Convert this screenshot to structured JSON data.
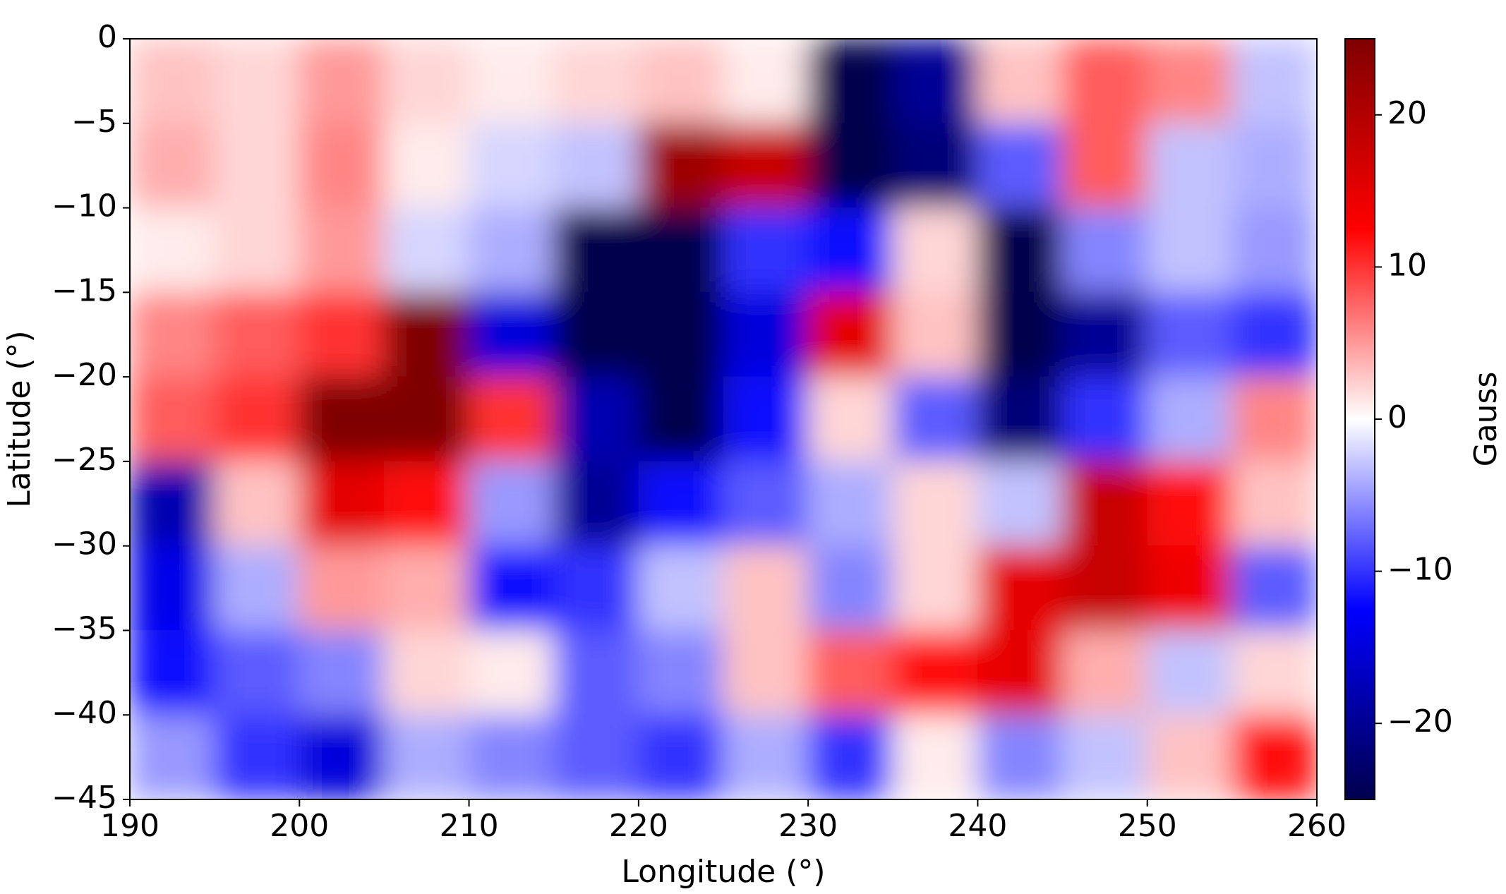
{
  "chart_data": {
    "type": "heatmap",
    "xlabel": "Longitude (°)",
    "ylabel": "Latitude (°)",
    "x": [
      192.5,
      197.5,
      202.5,
      207.5,
      212.5,
      217.5,
      222.5,
      227.5,
      232.5,
      237.5,
      242.5,
      247.5,
      252.5,
      257.5
    ],
    "y": [
      -2.5,
      -7.5,
      -12.5,
      -17.5,
      -22.5,
      -27.5,
      -32.5,
      -37.5,
      -42.5
    ],
    "values": [
      [
        3,
        2,
        5,
        2,
        1,
        2,
        3,
        1,
        -25,
        -20,
        3,
        8,
        6,
        -3
      ],
      [
        4,
        2,
        6,
        1,
        -2,
        -3,
        22,
        18,
        -25,
        -22,
        -8,
        8,
        -3,
        -4
      ],
      [
        1,
        2,
        5,
        -2,
        -4,
        -25,
        -25,
        -10,
        -12,
        2,
        -25,
        -6,
        -3,
        -5
      ],
      [
        6,
        8,
        10,
        25,
        -15,
        -25,
        -25,
        -15,
        15,
        3,
        -25,
        -20,
        -8,
        -10
      ],
      [
        8,
        10,
        25,
        25,
        10,
        -18,
        -25,
        -12,
        2,
        -8,
        -22,
        -10,
        -4,
        6
      ],
      [
        -18,
        3,
        15,
        12,
        -5,
        -20,
        -12,
        -8,
        -4,
        2,
        -3,
        18,
        12,
        3
      ],
      [
        -14,
        -4,
        5,
        4,
        -12,
        -10,
        -3,
        3,
        -6,
        2,
        15,
        18,
        14,
        -8
      ],
      [
        -12,
        -8,
        -6,
        2,
        1,
        -8,
        -6,
        3,
        8,
        12,
        15,
        4,
        -3,
        2
      ],
      [
        -5,
        -10,
        -15,
        -4,
        -6,
        -8,
        -10,
        -4,
        -10,
        1,
        -6,
        -3,
        3,
        12
      ]
    ],
    "xlim": [
      190,
      260
    ],
    "xticks": [
      190,
      200,
      210,
      220,
      230,
      240,
      250,
      260
    ],
    "ylim": [
      -45,
      0
    ],
    "yticks": [
      {
        "value": 0,
        "label": "0"
      },
      {
        "value": -5,
        "label": "−5"
      },
      {
        "value": -10,
        "label": "−10"
      },
      {
        "value": -15,
        "label": "−15"
      },
      {
        "value": -20,
        "label": "−20"
      },
      {
        "value": -25,
        "label": "−25"
      },
      {
        "value": -30,
        "label": "−30"
      },
      {
        "value": -35,
        "label": "−35"
      },
      {
        "value": -40,
        "label": "−40"
      },
      {
        "value": -45,
        "label": "−45"
      }
    ],
    "colormap": [
      "#00004c",
      "#0000ff",
      "#ffffff",
      "#ff0000",
      "#7f0000"
    ],
    "colorbar": {
      "label": "Gauss",
      "lim": [
        -25,
        25
      ],
      "ticks": [
        {
          "value": -20,
          "label": "−20"
        },
        {
          "value": -10,
          "label": "−10"
        },
        0,
        10,
        20
      ]
    }
  }
}
